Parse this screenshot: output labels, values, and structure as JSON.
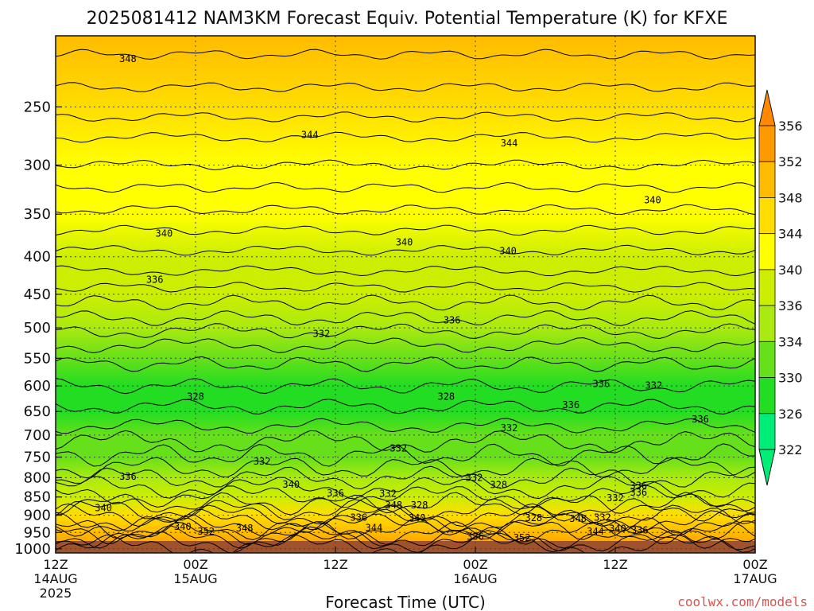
{
  "chart_data": {
    "type": "heatmap",
    "title": "2025081412 NAM3KM Forecast Equiv. Potential Temperature (K) for KFXE",
    "xlabel": "Forecast Time (UTC)",
    "ylabel": "",
    "x_ticks": [
      {
        "hour": 0,
        "lines": [
          "12Z",
          "14AUG",
          "2025"
        ]
      },
      {
        "hour": 12,
        "lines": [
          "00Z",
          "15AUG"
        ]
      },
      {
        "hour": 24,
        "lines": [
          "12Z"
        ]
      },
      {
        "hour": 36,
        "lines": [
          "00Z",
          "16AUG"
        ]
      },
      {
        "hour": 48,
        "lines": [
          "12Z"
        ]
      },
      {
        "hour": 60,
        "lines": [
          "00Z",
          "17AUG"
        ]
      }
    ],
    "x_range_hours": [
      0,
      60
    ],
    "y_ticks": [
      250,
      300,
      350,
      400,
      450,
      500,
      550,
      600,
      650,
      700,
      750,
      800,
      850,
      900,
      950,
      1000
    ],
    "y_range_hPa": [
      200,
      1013
    ],
    "y_scale": "log-pressure",
    "grid": true,
    "colorbar": {
      "levels": [
        322,
        326,
        330,
        334,
        336,
        340,
        344,
        348,
        352,
        356
      ],
      "colors": [
        "#00ee77",
        "#22dd22",
        "#66e01a",
        "#aaea10",
        "#ccee00",
        "#ffff00",
        "#ffdd00",
        "#ffbb00",
        "#ff9900",
        "#ff8800"
      ],
      "placement": "right"
    },
    "profile_theta_e": [
      {
        "p": 200,
        "v": 349
      },
      {
        "p": 250,
        "v": 345
      },
      {
        "p": 300,
        "v": 342
      },
      {
        "p": 350,
        "v": 340
      },
      {
        "p": 400,
        "v": 338
      },
      {
        "p": 450,
        "v": 336
      },
      {
        "p": 500,
        "v": 334
      },
      {
        "p": 550,
        "v": 331
      },
      {
        "p": 600,
        "v": 329
      },
      {
        "p": 650,
        "v": 329
      },
      {
        "p": 700,
        "v": 330
      },
      {
        "p": 750,
        "v": 332
      },
      {
        "p": 800,
        "v": 334
      },
      {
        "p": 850,
        "v": 338
      },
      {
        "p": 900,
        "v": 344
      },
      {
        "p": 950,
        "v": 350
      },
      {
        "p": 1000,
        "v": 354
      }
    ],
    "contour_labels": [
      {
        "text": "348",
        "hour": 6.2,
        "p": 215
      },
      {
        "text": "344",
        "hour": 21.8,
        "p": 273
      },
      {
        "text": "344",
        "hour": 38.9,
        "p": 280
      },
      {
        "text": "340",
        "hour": 9.3,
        "p": 372
      },
      {
        "text": "340",
        "hour": 29.9,
        "p": 382
      },
      {
        "text": "340",
        "hour": 38.8,
        "p": 393
      },
      {
        "text": "340",
        "hour": 51.2,
        "p": 335
      },
      {
        "text": "336",
        "hour": 8.5,
        "p": 430
      },
      {
        "text": "336",
        "hour": 34.0,
        "p": 488
      },
      {
        "text": "332",
        "hour": 22.8,
        "p": 509
      },
      {
        "text": "328",
        "hour": 12.0,
        "p": 620
      },
      {
        "text": "328",
        "hour": 33.5,
        "p": 620
      },
      {
        "text": "336",
        "hour": 46.8,
        "p": 596
      },
      {
        "text": "332",
        "hour": 51.3,
        "p": 599
      },
      {
        "text": "336",
        "hour": 44.2,
        "p": 637
      },
      {
        "text": "336",
        "hour": 55.3,
        "p": 666
      },
      {
        "text": "332",
        "hour": 38.9,
        "p": 685
      },
      {
        "text": "332",
        "hour": 29.4,
        "p": 730
      },
      {
        "text": "332",
        "hour": 17.7,
        "p": 760
      },
      {
        "text": "332",
        "hour": 35.9,
        "p": 800
      },
      {
        "text": "336",
        "hour": 6.2,
        "p": 797
      },
      {
        "text": "340",
        "hour": 20.2,
        "p": 817
      },
      {
        "text": "336",
        "hour": 24.0,
        "p": 840
      },
      {
        "text": "332",
        "hour": 28.5,
        "p": 841
      },
      {
        "text": "328",
        "hour": 38.0,
        "p": 818
      },
      {
        "text": "336",
        "hour": 50.0,
        "p": 820
      },
      {
        "text": "336",
        "hour": 50.0,
        "p": 838
      },
      {
        "text": "332",
        "hour": 48.0,
        "p": 853
      },
      {
        "text": "348",
        "hour": 29.0,
        "p": 872
      },
      {
        "text": "328",
        "hour": 31.2,
        "p": 872
      },
      {
        "text": "340",
        "hour": 4.1,
        "p": 880
      },
      {
        "text": "336",
        "hour": 26.0,
        "p": 906
      },
      {
        "text": "340",
        "hour": 31.0,
        "p": 908
      },
      {
        "text": "328",
        "hour": 41.0,
        "p": 908
      },
      {
        "text": "348",
        "hour": 44.8,
        "p": 910
      },
      {
        "text": "332",
        "hour": 46.9,
        "p": 906
      },
      {
        "text": "344",
        "hour": 27.3,
        "p": 936
      },
      {
        "text": "340",
        "hour": 10.9,
        "p": 933
      },
      {
        "text": "352",
        "hour": 12.9,
        "p": 947
      },
      {
        "text": "348",
        "hour": 16.2,
        "p": 938
      },
      {
        "text": "344",
        "hour": 46.3,
        "p": 947
      },
      {
        "text": "340",
        "hour": 48.2,
        "p": 939
      },
      {
        "text": "336",
        "hour": 50.1,
        "p": 944
      },
      {
        "text": "336",
        "hour": 36.0,
        "p": 962
      },
      {
        "text": "352",
        "hour": 40.0,
        "p": 966
      }
    ]
  },
  "credit": "coolwx.com/models"
}
